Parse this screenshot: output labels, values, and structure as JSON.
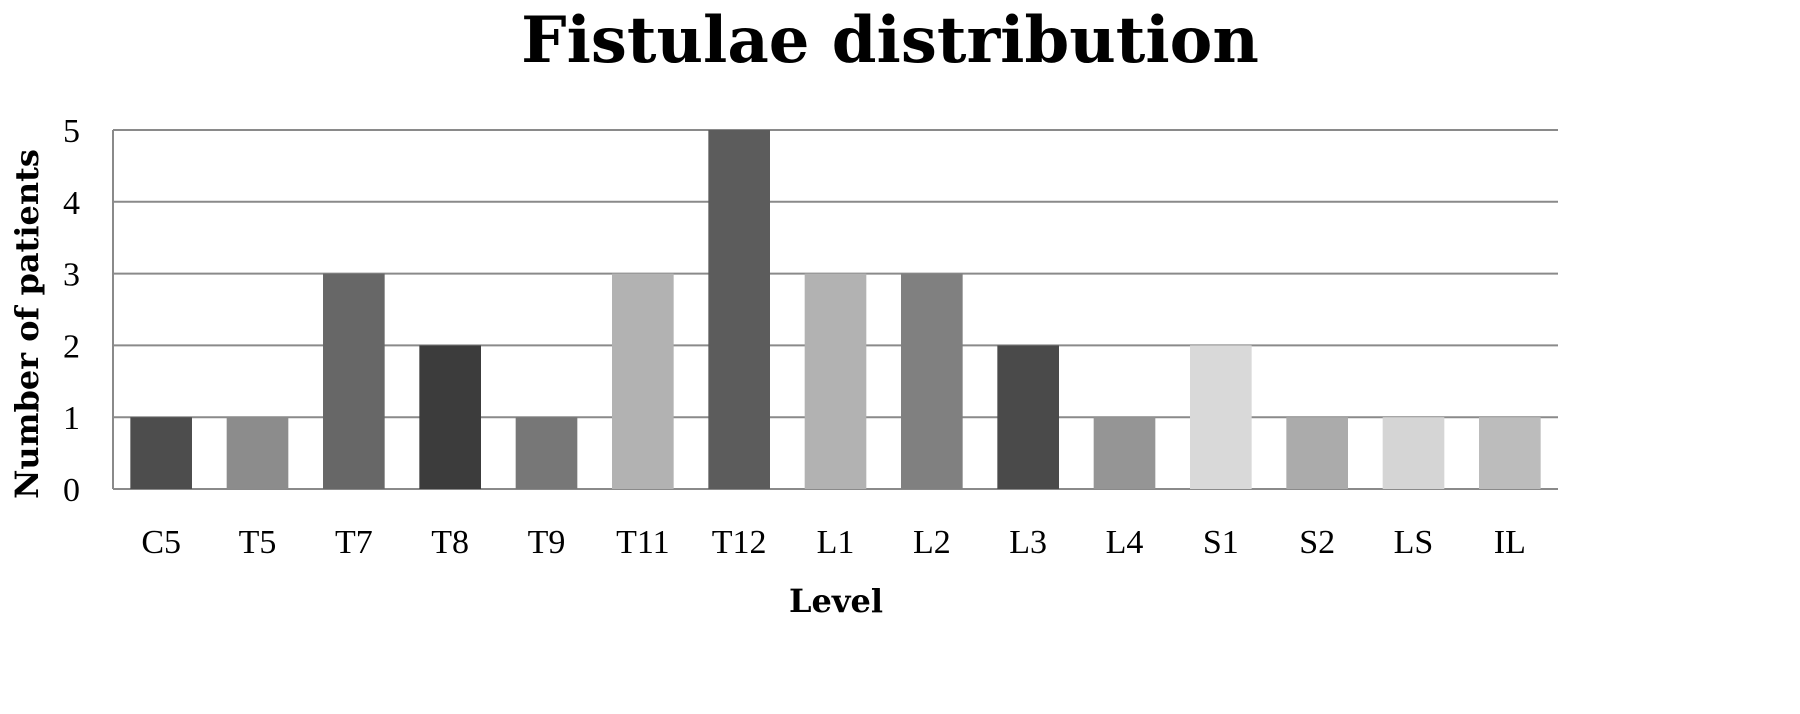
{
  "chart_data": {
    "type": "bar",
    "title": "Fistulae distribution",
    "xlabel": "Level",
    "ylabel": "Number of patients",
    "categories": [
      "C5",
      "T5",
      "T7",
      "T8",
      "T9",
      "T11",
      "T12",
      "L1",
      "L2",
      "L3",
      "L4",
      "S1",
      "S2",
      "LS",
      "IL"
    ],
    "values": [
      1,
      1,
      3,
      2,
      1,
      3,
      5,
      3,
      3,
      2,
      1,
      2,
      1,
      1,
      1
    ],
    "colors": [
      "#4d4d4d",
      "#8c8c8c",
      "#676767",
      "#3c3c3c",
      "#777777",
      "#b2b2b2",
      "#5c5c5c",
      "#b2b2b2",
      "#808080",
      "#4a4a4a",
      "#959595",
      "#d9d9d9",
      "#ababab",
      "#d5d5d5",
      "#bcbcbc"
    ],
    "yticks": [
      "0",
      "1",
      "2",
      "3",
      "4",
      "5"
    ],
    "ylim": [
      0,
      5
    ],
    "grid": true,
    "legend": "none"
  }
}
